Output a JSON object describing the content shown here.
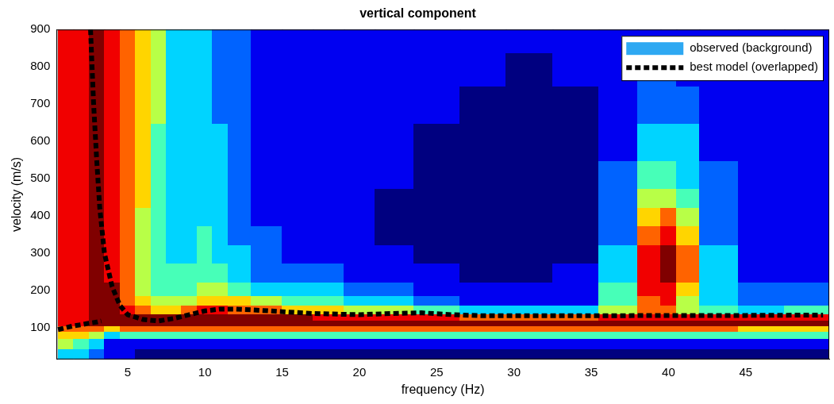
{
  "chart_data": {
    "type": "heatmap",
    "title": "vertical component",
    "x_label": "frequency (Hz)",
    "y_label": "velocity (m/s)",
    "xlim": [
      0.4,
      50.4
    ],
    "ylim": [
      15,
      900
    ],
    "xticks": [
      5,
      10,
      15,
      20,
      25,
      30,
      35,
      40,
      45
    ],
    "yticks": [
      100,
      200,
      300,
      400,
      500,
      600,
      700,
      800,
      900
    ],
    "grid": false,
    "legend": "upper right",
    "heatmap": {
      "name": "observed (background)",
      "color": "#2ea8f2",
      "clim": [
        0,
        9
      ],
      "x": [
        1,
        2,
        3,
        4,
        5,
        6,
        7,
        8,
        9,
        10,
        11,
        12,
        14,
        16,
        18,
        20,
        22,
        25,
        28,
        31,
        34,
        37,
        39,
        40,
        41,
        43,
        46,
        49
      ],
      "y": [
        30,
        60,
        85,
        100,
        115,
        130,
        150,
        175,
        200,
        250,
        300,
        350,
        400,
        450,
        500,
        600,
        700,
        800,
        880
      ],
      "values": [
        [
          3,
          3,
          2,
          1,
          1,
          0,
          0,
          0,
          0,
          0,
          0,
          0,
          0,
          0,
          0,
          0,
          0,
          0,
          0,
          0,
          0,
          0,
          0,
          0,
          0,
          0,
          0,
          0
        ],
        [
          5,
          4,
          3,
          1,
          1,
          1,
          1,
          1,
          1,
          1,
          1,
          1,
          1,
          1,
          1,
          1,
          1,
          1,
          1,
          1,
          1,
          1,
          1,
          1,
          1,
          1,
          1,
          1
        ],
        [
          6,
          6,
          5,
          3,
          4,
          4,
          4,
          4,
          4,
          4,
          4,
          4,
          4,
          4,
          4,
          4,
          4,
          4,
          4,
          4,
          4,
          4,
          4,
          4,
          4,
          4,
          4,
          4
        ],
        [
          7,
          7,
          7,
          6,
          7,
          7,
          7,
          7,
          7,
          7,
          7,
          7,
          7,
          7,
          7,
          7,
          7,
          7,
          7,
          7,
          7,
          7,
          7,
          7,
          7,
          7,
          6,
          6
        ],
        [
          8,
          8,
          9,
          9,
          9,
          9,
          9,
          9,
          9,
          9,
          9,
          9,
          9,
          9,
          9,
          9,
          9,
          9,
          9,
          9,
          9,
          9,
          9,
          9,
          9,
          9,
          9,
          9
        ],
        [
          8,
          8,
          9,
          9,
          9,
          9,
          9,
          9,
          9,
          9,
          9,
          9,
          9,
          9,
          8,
          8,
          8,
          8,
          7,
          7,
          7,
          8,
          8,
          8,
          8,
          8,
          8,
          8
        ],
        [
          8,
          8,
          9,
          9,
          8,
          7,
          6,
          6,
          7,
          8,
          8,
          7,
          7,
          6,
          6,
          5,
          5,
          4,
          3,
          3,
          3,
          5,
          7,
          7,
          5,
          4,
          3,
          4
        ],
        [
          8,
          8,
          9,
          9,
          7,
          6,
          5,
          5,
          5,
          6,
          6,
          6,
          5,
          4,
          4,
          3,
          3,
          2,
          1,
          1,
          1,
          4,
          7,
          8,
          5,
          3,
          2,
          2
        ],
        [
          8,
          8,
          9,
          9,
          7,
          5,
          4,
          4,
          4,
          5,
          5,
          4,
          3,
          3,
          3,
          2,
          2,
          1,
          1,
          1,
          1,
          4,
          8,
          8,
          6,
          3,
          2,
          2
        ],
        [
          8,
          8,
          9,
          8,
          7,
          5,
          4,
          4,
          4,
          4,
          4,
          3,
          2,
          2,
          2,
          1,
          1,
          1,
          0,
          0,
          1,
          3,
          8,
          9,
          7,
          3,
          1,
          1
        ],
        [
          8,
          8,
          9,
          8,
          7,
          5,
          4,
          3,
          3,
          4,
          3,
          3,
          2,
          1,
          1,
          1,
          1,
          0,
          0,
          0,
          0,
          3,
          8,
          9,
          7,
          3,
          1,
          1
        ],
        [
          8,
          8,
          9,
          8,
          7,
          5,
          4,
          3,
          3,
          4,
          3,
          2,
          2,
          1,
          1,
          1,
          0,
          0,
          0,
          0,
          0,
          2,
          7,
          8,
          6,
          2,
          1,
          1
        ],
        [
          8,
          8,
          9,
          8,
          7,
          5,
          4,
          3,
          3,
          3,
          3,
          2,
          1,
          1,
          1,
          1,
          0,
          0,
          0,
          0,
          0,
          2,
          6,
          7,
          5,
          2,
          1,
          1
        ],
        [
          8,
          8,
          9,
          8,
          7,
          6,
          4,
          3,
          3,
          3,
          3,
          2,
          1,
          1,
          1,
          1,
          0,
          0,
          0,
          0,
          0,
          2,
          5,
          5,
          4,
          2,
          1,
          1
        ],
        [
          8,
          8,
          9,
          8,
          7,
          6,
          4,
          3,
          3,
          3,
          3,
          2,
          1,
          1,
          1,
          1,
          1,
          0,
          0,
          0,
          0,
          2,
          4,
          4,
          3,
          2,
          1,
          1
        ],
        [
          8,
          8,
          9,
          8,
          7,
          6,
          4,
          3,
          3,
          3,
          3,
          2,
          1,
          1,
          1,
          1,
          1,
          0,
          0,
          0,
          0,
          1,
          3,
          3,
          3,
          1,
          1,
          1
        ],
        [
          8,
          8,
          9,
          8,
          7,
          6,
          5,
          3,
          3,
          3,
          2,
          2,
          1,
          1,
          1,
          1,
          1,
          1,
          0,
          0,
          0,
          1,
          2,
          2,
          2,
          1,
          1,
          1
        ],
        [
          8,
          8,
          9,
          8,
          7,
          6,
          5,
          3,
          3,
          3,
          2,
          2,
          1,
          1,
          1,
          1,
          1,
          1,
          1,
          0,
          1,
          1,
          2,
          2,
          1,
          1,
          1,
          1
        ],
        [
          8,
          8,
          9,
          8,
          7,
          6,
          5,
          3,
          3,
          3,
          2,
          2,
          1,
          1,
          1,
          1,
          1,
          1,
          1,
          1,
          1,
          1,
          1,
          1,
          1,
          1,
          1,
          1
        ]
      ]
    },
    "series": [
      {
        "name": "best model (overlapped)",
        "type": "line",
        "color": "#000000",
        "line_style": "dashed",
        "x": [
          0.5,
          1,
          1.5,
          2,
          2.5,
          3,
          3.3,
          3.4,
          2.6,
          2.8,
          3,
          3.2,
          3.5,
          4,
          4.5,
          5,
          6,
          7,
          8,
          9,
          10,
          11,
          12,
          13,
          15,
          17,
          20,
          22,
          24,
          26,
          28,
          30,
          35,
          40,
          45,
          50
        ],
        "values": [
          95,
          100,
          105,
          108,
          112,
          115,
          118,
          null,
          900,
          700,
          550,
          420,
          300,
          210,
          160,
          135,
          122,
          118,
          125,
          135,
          145,
          150,
          150,
          148,
          143,
          138,
          135,
          138,
          140,
          135,
          132,
          132,
          132,
          133,
          133,
          134
        ]
      }
    ]
  }
}
